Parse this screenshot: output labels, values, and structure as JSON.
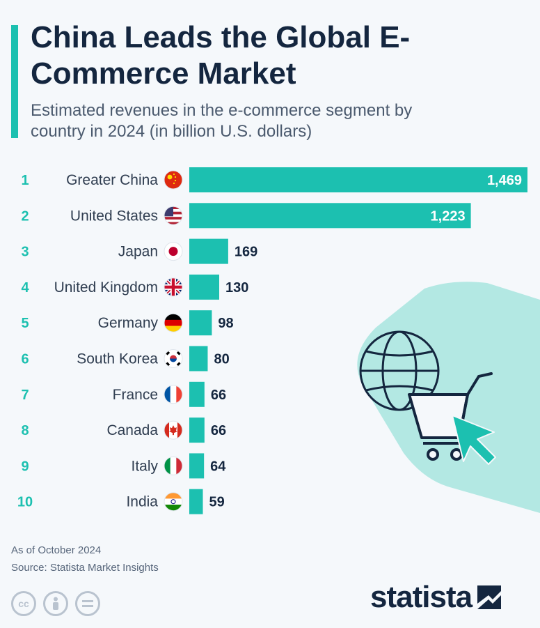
{
  "header": {
    "title": "China Leads the Global E-Commerce Market",
    "subtitle": "Estimated revenues in the e-commerce segment by country in 2024 (in billion U.S. dollars)"
  },
  "footer": {
    "note": "As of October 2024",
    "source": "Source: Statista Market Insights",
    "brand": "statista",
    "license_icons": [
      "cc-icon",
      "person-icon",
      "equals-icon"
    ]
  },
  "colors": {
    "bar": "#1cc0b0",
    "rank": "#1cc0b0",
    "title": "#14263f",
    "value_outside": "#14263f",
    "value_inside": "#ffffff",
    "decoration": "#b3e8e3"
  },
  "chart_data": {
    "type": "bar",
    "orientation": "horizontal",
    "title": "China Leads the Global E-Commerce Market",
    "subtitle": "Estimated revenues in the e-commerce segment by country in 2024 (in billion U.S. dollars)",
    "categories": [
      "Greater China",
      "United States",
      "Japan",
      "United Kingdom",
      "Germany",
      "South Korea",
      "France",
      "Canada",
      "Italy",
      "India"
    ],
    "ranks": [
      "1",
      "2",
      "3",
      "4",
      "5",
      "6",
      "7",
      "8",
      "9",
      "10"
    ],
    "values": [
      1469,
      1223,
      169,
      130,
      98,
      80,
      66,
      66,
      64,
      59
    ],
    "value_labels": [
      "1,469",
      "1,223",
      "169",
      "130",
      "98",
      "80",
      "66",
      "66",
      "64",
      "59"
    ],
    "flags": [
      "china-flag-icon",
      "usa-flag-icon",
      "japan-flag-icon",
      "uk-flag-icon",
      "germany-flag-icon",
      "south-korea-flag-icon",
      "france-flag-icon",
      "canada-flag-icon",
      "italy-flag-icon",
      "india-flag-icon"
    ],
    "xlim": [
      0,
      1469
    ],
    "grid": false,
    "legend": "none"
  }
}
